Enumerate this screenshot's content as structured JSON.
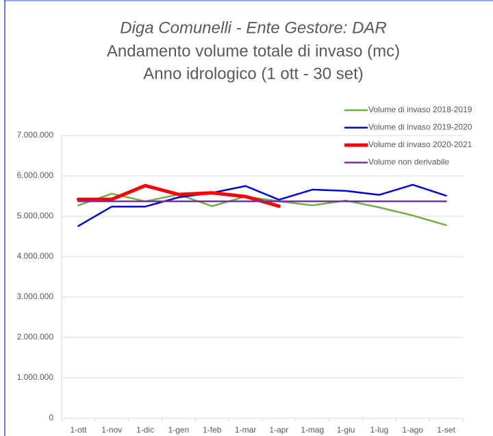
{
  "chart_data": {
    "type": "line",
    "title": [
      "Diga Comunelli - Ente Gestore: DAR",
      "Andamento volume totale di invaso (mc)",
      "Anno idrologico (1 ott - 30 set)"
    ],
    "categories": [
      "1-ott",
      "1-nov",
      "1-dic",
      "1-gen",
      "1-feb",
      "1-mar",
      "1-apr",
      "1-mag",
      "1-giu",
      "1-lug",
      "1-ago",
      "1-set"
    ],
    "series": [
      {
        "name": "Volume di invaso 2018-2019",
        "color": "#70ad47",
        "width": 2.5,
        "values": [
          5270000,
          5560000,
          5370000,
          5540000,
          5250000,
          5490000,
          5370000,
          5270000,
          5390000,
          5220000,
          5020000,
          4780000
        ]
      },
      {
        "name": "Volume di invaso 2019-2020",
        "color": "#0000dd",
        "width": 2.5,
        "values": [
          4760000,
          5240000,
          5240000,
          5470000,
          5580000,
          5750000,
          5410000,
          5660000,
          5630000,
          5530000,
          5780000,
          5510000
        ]
      },
      {
        "name": "Volume di invaso 2020-2021",
        "color": "#ff0000",
        "width": 5,
        "values": [
          5420000,
          5420000,
          5760000,
          5540000,
          5580000,
          5490000,
          5250000,
          null,
          null,
          null,
          null,
          null
        ]
      },
      {
        "name": "Volume non derivabile",
        "color": "#7030a0",
        "width": 2.5,
        "values": [
          5370000,
          5370000,
          5370000,
          5370000,
          5370000,
          5370000,
          5370000,
          5370000,
          5370000,
          5370000,
          5370000,
          5370000
        ]
      }
    ],
    "ylim": [
      0,
      7000000
    ],
    "yticks": [
      0,
      {
        "value": 1000000,
        "label": "1.000.000"
      },
      {
        "value": 2000000,
        "label": "2.000.000"
      },
      {
        "value": 3000000,
        "label": "3.000.000"
      },
      {
        "value": 4000000,
        "label": "4.000.000"
      },
      {
        "value": 5000000,
        "label": "5.000.000"
      },
      {
        "value": 6000000,
        "label": "6.000.000"
      },
      {
        "value": 7000000,
        "label": "7.000.000"
      }
    ],
    "grid": true,
    "legend": "top-right"
  }
}
